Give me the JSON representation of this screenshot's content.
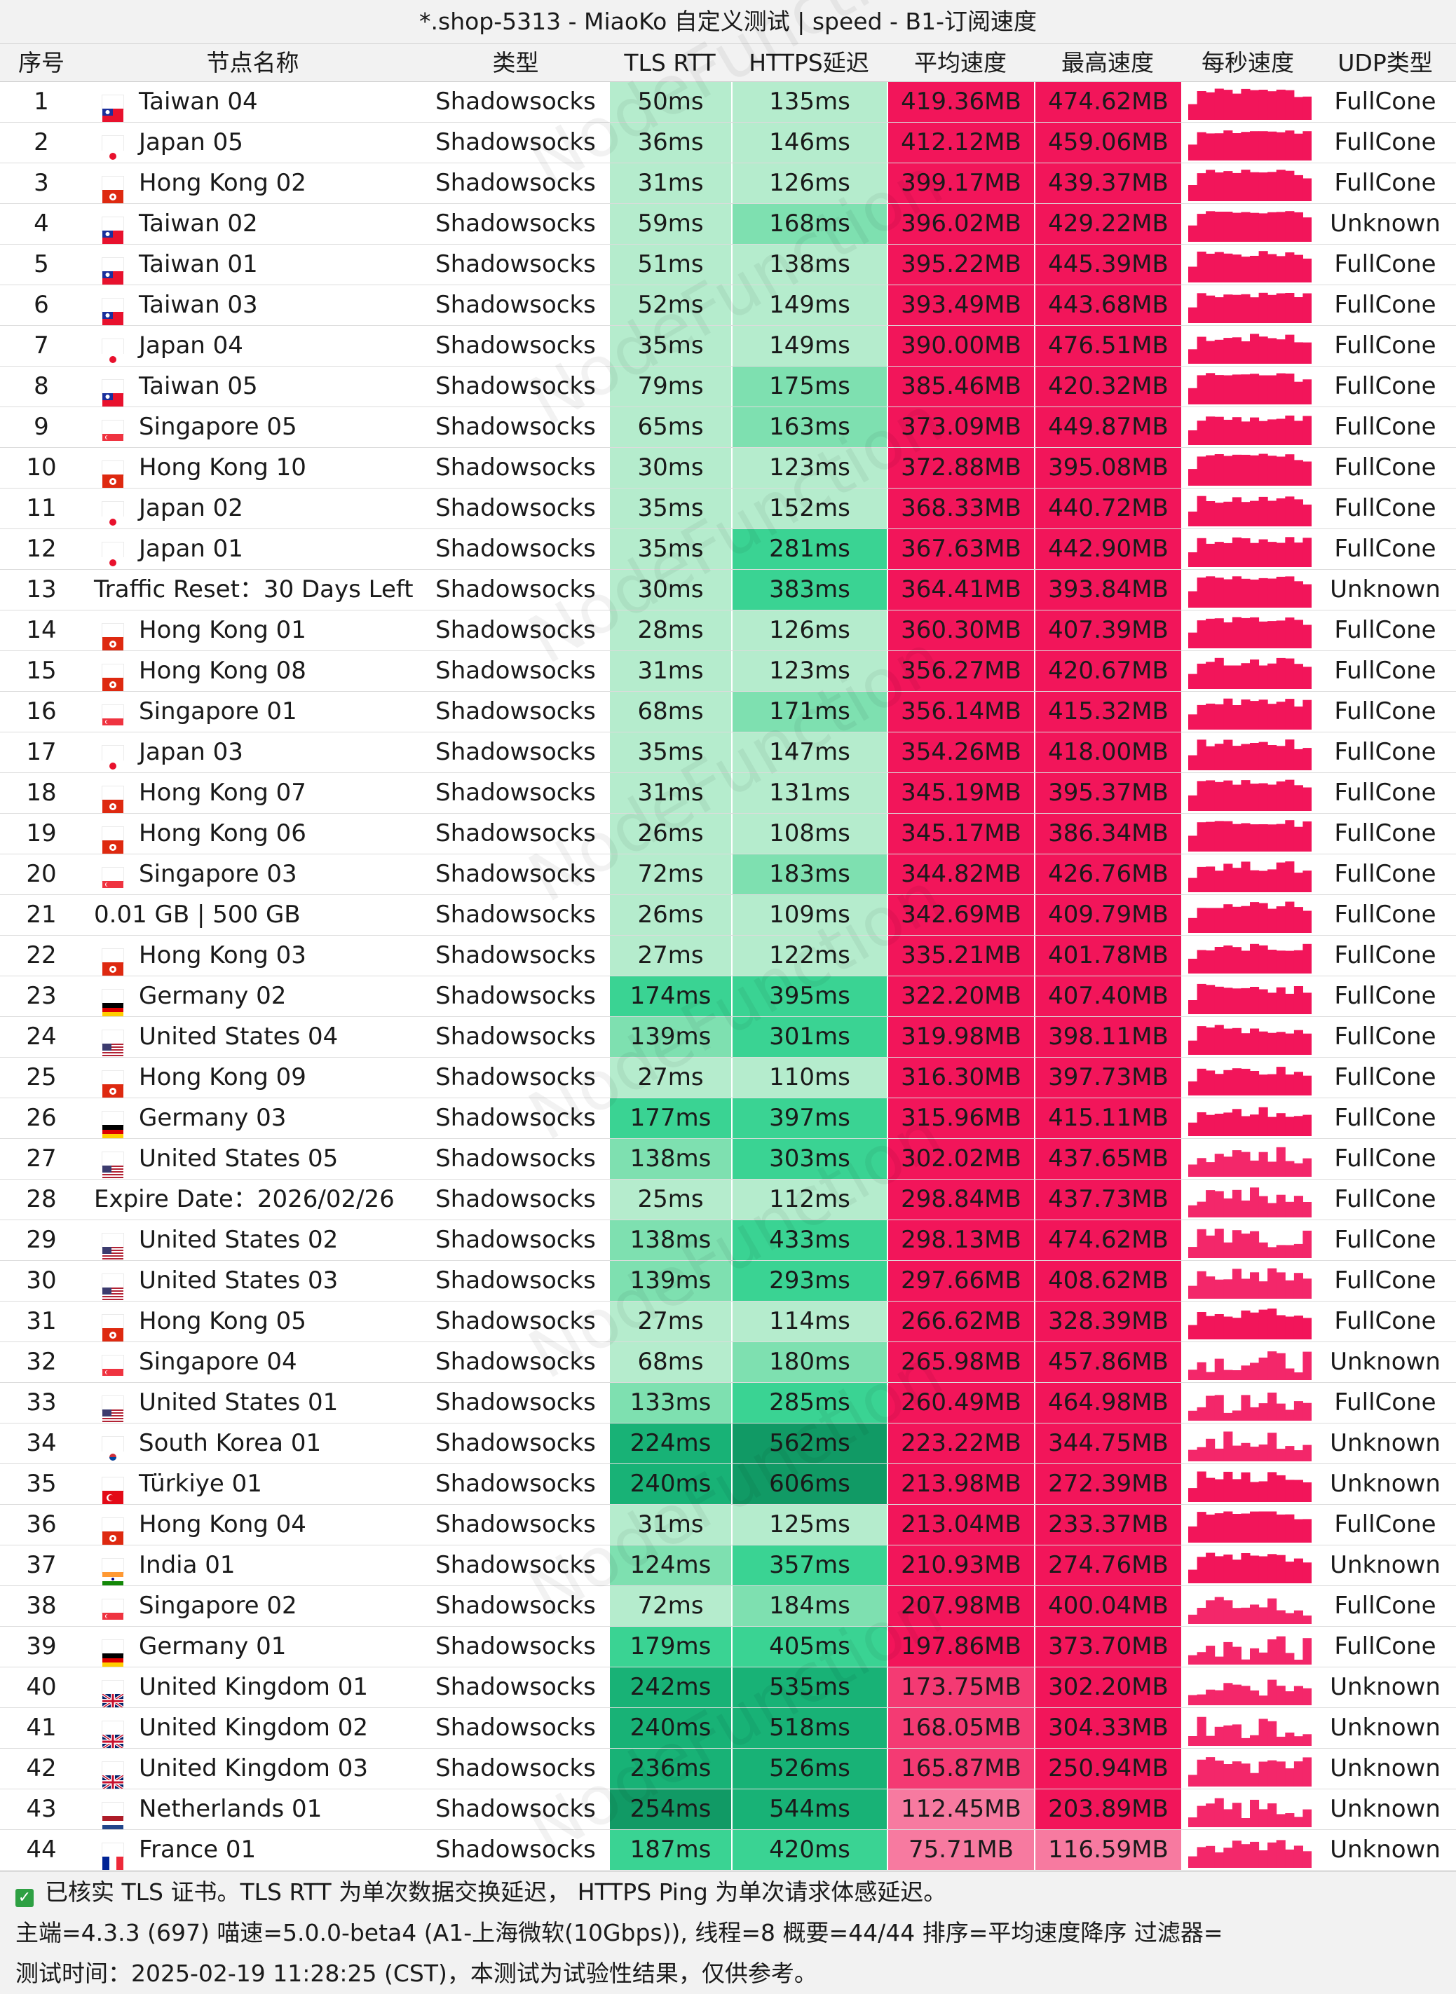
{
  "title": "*.shop-5313 - MiaoKo 自定义测试 | speed - B1-订阅速度",
  "watermark": "NodeFunction",
  "headers": {
    "no": "序号",
    "name": "节点名称",
    "type": "类型",
    "tls": "TLS RTT",
    "https": "HTTPS延迟",
    "avg": "平均速度",
    "max": "最高速度",
    "spark": "每秒速度",
    "udp": "UDP类型"
  },
  "colors": {
    "speed_high": "#f2155a",
    "speed_mid": "#f43a73",
    "speed_low": "#f77aa0",
    "latency_lightest": "#b5eccd",
    "latency_light": "#7ee0b0",
    "latency_mid": "#3ad393",
    "latency_dark": "#18b276",
    "latency_darker": "#119a65"
  },
  "rows": [
    {
      "no": "1",
      "flag": "tw",
      "name": "Taiwan 04",
      "type": "Shadowsocks",
      "tls": "50ms",
      "https": "135ms",
      "avg": "419.36MB",
      "max": "474.62MB",
      "udp": "FullCone"
    },
    {
      "no": "2",
      "flag": "jp",
      "name": "Japan 05",
      "type": "Shadowsocks",
      "tls": "36ms",
      "https": "146ms",
      "avg": "412.12MB",
      "max": "459.06MB",
      "udp": "FullCone"
    },
    {
      "no": "3",
      "flag": "hk",
      "name": "Hong Kong 02",
      "type": "Shadowsocks",
      "tls": "31ms",
      "https": "126ms",
      "avg": "399.17MB",
      "max": "439.37MB",
      "udp": "FullCone"
    },
    {
      "no": "4",
      "flag": "tw",
      "name": "Taiwan 02",
      "type": "Shadowsocks",
      "tls": "59ms",
      "https": "168ms",
      "avg": "396.02MB",
      "max": "429.22MB",
      "udp": "Unknown"
    },
    {
      "no": "5",
      "flag": "tw",
      "name": "Taiwan 01",
      "type": "Shadowsocks",
      "tls": "51ms",
      "https": "138ms",
      "avg": "395.22MB",
      "max": "445.39MB",
      "udp": "FullCone"
    },
    {
      "no": "6",
      "flag": "tw",
      "name": "Taiwan 03",
      "type": "Shadowsocks",
      "tls": "52ms",
      "https": "149ms",
      "avg": "393.49MB",
      "max": "443.68MB",
      "udp": "FullCone"
    },
    {
      "no": "7",
      "flag": "jp",
      "name": "Japan 04",
      "type": "Shadowsocks",
      "tls": "35ms",
      "https": "149ms",
      "avg": "390.00MB",
      "max": "476.51MB",
      "udp": "FullCone"
    },
    {
      "no": "8",
      "flag": "tw",
      "name": "Taiwan 05",
      "type": "Shadowsocks",
      "tls": "79ms",
      "https": "175ms",
      "avg": "385.46MB",
      "max": "420.32MB",
      "udp": "FullCone"
    },
    {
      "no": "9",
      "flag": "sg",
      "name": "Singapore 05",
      "type": "Shadowsocks",
      "tls": "65ms",
      "https": "163ms",
      "avg": "373.09MB",
      "max": "449.87MB",
      "udp": "FullCone"
    },
    {
      "no": "10",
      "flag": "hk",
      "name": "Hong Kong 10",
      "type": "Shadowsocks",
      "tls": "30ms",
      "https": "123ms",
      "avg": "372.88MB",
      "max": "395.08MB",
      "udp": "FullCone"
    },
    {
      "no": "11",
      "flag": "jp",
      "name": "Japan 02",
      "type": "Shadowsocks",
      "tls": "35ms",
      "https": "152ms",
      "avg": "368.33MB",
      "max": "440.72MB",
      "udp": "FullCone"
    },
    {
      "no": "12",
      "flag": "jp",
      "name": "Japan 01",
      "type": "Shadowsocks",
      "tls": "35ms",
      "https": "281ms",
      "avg": "367.63MB",
      "max": "442.90MB",
      "udp": "FullCone"
    },
    {
      "no": "13",
      "flag": "",
      "name": "Traffic Reset：30 Days Left",
      "type": "Shadowsocks",
      "tls": "30ms",
      "https": "383ms",
      "avg": "364.41MB",
      "max": "393.84MB",
      "udp": "Unknown"
    },
    {
      "no": "14",
      "flag": "hk",
      "name": "Hong Kong 01",
      "type": "Shadowsocks",
      "tls": "28ms",
      "https": "126ms",
      "avg": "360.30MB",
      "max": "407.39MB",
      "udp": "FullCone"
    },
    {
      "no": "15",
      "flag": "hk",
      "name": "Hong Kong 08",
      "type": "Shadowsocks",
      "tls": "31ms",
      "https": "123ms",
      "avg": "356.27MB",
      "max": "420.67MB",
      "udp": "FullCone"
    },
    {
      "no": "16",
      "flag": "sg",
      "name": "Singapore 01",
      "type": "Shadowsocks",
      "tls": "68ms",
      "https": "171ms",
      "avg": "356.14MB",
      "max": "415.32MB",
      "udp": "FullCone"
    },
    {
      "no": "17",
      "flag": "jp",
      "name": "Japan 03",
      "type": "Shadowsocks",
      "tls": "35ms",
      "https": "147ms",
      "avg": "354.26MB",
      "max": "418.00MB",
      "udp": "FullCone"
    },
    {
      "no": "18",
      "flag": "hk",
      "name": "Hong Kong 07",
      "type": "Shadowsocks",
      "tls": "31ms",
      "https": "131ms",
      "avg": "345.19MB",
      "max": "395.37MB",
      "udp": "FullCone"
    },
    {
      "no": "19",
      "flag": "hk",
      "name": "Hong Kong 06",
      "type": "Shadowsocks",
      "tls": "26ms",
      "https": "108ms",
      "avg": "345.17MB",
      "max": "386.34MB",
      "udp": "FullCone"
    },
    {
      "no": "20",
      "flag": "sg",
      "name": "Singapore 03",
      "type": "Shadowsocks",
      "tls": "72ms",
      "https": "183ms",
      "avg": "344.82MB",
      "max": "426.76MB",
      "udp": "FullCone"
    },
    {
      "no": "21",
      "flag": "",
      "name": "0.01 GB | 500 GB",
      "type": "Shadowsocks",
      "tls": "26ms",
      "https": "109ms",
      "avg": "342.69MB",
      "max": "409.79MB",
      "udp": "FullCone"
    },
    {
      "no": "22",
      "flag": "hk",
      "name": "Hong Kong 03",
      "type": "Shadowsocks",
      "tls": "27ms",
      "https": "122ms",
      "avg": "335.21MB",
      "max": "401.78MB",
      "udp": "FullCone"
    },
    {
      "no": "23",
      "flag": "de",
      "name": "Germany 02",
      "type": "Shadowsocks",
      "tls": "174ms",
      "https": "395ms",
      "avg": "322.20MB",
      "max": "407.40MB",
      "udp": "FullCone"
    },
    {
      "no": "24",
      "flag": "us",
      "name": "United States 04",
      "type": "Shadowsocks",
      "tls": "139ms",
      "https": "301ms",
      "avg": "319.98MB",
      "max": "398.11MB",
      "udp": "FullCone"
    },
    {
      "no": "25",
      "flag": "hk",
      "name": "Hong Kong 09",
      "type": "Shadowsocks",
      "tls": "27ms",
      "https": "110ms",
      "avg": "316.30MB",
      "max": "397.73MB",
      "udp": "FullCone"
    },
    {
      "no": "26",
      "flag": "de",
      "name": "Germany 03",
      "type": "Shadowsocks",
      "tls": "177ms",
      "https": "397ms",
      "avg": "315.96MB",
      "max": "415.11MB",
      "udp": "FullCone"
    },
    {
      "no": "27",
      "flag": "us",
      "name": "United States 05",
      "type": "Shadowsocks",
      "tls": "138ms",
      "https": "303ms",
      "avg": "302.02MB",
      "max": "437.65MB",
      "udp": "FullCone"
    },
    {
      "no": "28",
      "flag": "",
      "name": "Expire Date：2026/02/26",
      "type": "Shadowsocks",
      "tls": "25ms",
      "https": "112ms",
      "avg": "298.84MB",
      "max": "437.73MB",
      "udp": "FullCone"
    },
    {
      "no": "29",
      "flag": "us",
      "name": "United States 02",
      "type": "Shadowsocks",
      "tls": "138ms",
      "https": "433ms",
      "avg": "298.13MB",
      "max": "474.62MB",
      "udp": "FullCone"
    },
    {
      "no": "30",
      "flag": "us",
      "name": "United States 03",
      "type": "Shadowsocks",
      "tls": "139ms",
      "https": "293ms",
      "avg": "297.66MB",
      "max": "408.62MB",
      "udp": "FullCone"
    },
    {
      "no": "31",
      "flag": "hk",
      "name": "Hong Kong 05",
      "type": "Shadowsocks",
      "tls": "27ms",
      "https": "114ms",
      "avg": "266.62MB",
      "max": "328.39MB",
      "udp": "FullCone"
    },
    {
      "no": "32",
      "flag": "sg",
      "name": "Singapore 04",
      "type": "Shadowsocks",
      "tls": "68ms",
      "https": "180ms",
      "avg": "265.98MB",
      "max": "457.86MB",
      "udp": "Unknown"
    },
    {
      "no": "33",
      "flag": "us",
      "name": "United States 01",
      "type": "Shadowsocks",
      "tls": "133ms",
      "https": "285ms",
      "avg": "260.49MB",
      "max": "464.98MB",
      "udp": "FullCone"
    },
    {
      "no": "34",
      "flag": "kr",
      "name": "South Korea 01",
      "type": "Shadowsocks",
      "tls": "224ms",
      "https": "562ms",
      "avg": "223.22MB",
      "max": "344.75MB",
      "udp": "Unknown"
    },
    {
      "no": "35",
      "flag": "tr",
      "name": "Türkiye 01",
      "type": "Shadowsocks",
      "tls": "240ms",
      "https": "606ms",
      "avg": "213.98MB",
      "max": "272.39MB",
      "udp": "Unknown"
    },
    {
      "no": "36",
      "flag": "hk",
      "name": "Hong Kong 04",
      "type": "Shadowsocks",
      "tls": "31ms",
      "https": "125ms",
      "avg": "213.04MB",
      "max": "233.37MB",
      "udp": "FullCone"
    },
    {
      "no": "37",
      "flag": "in",
      "name": "India 01",
      "type": "Shadowsocks",
      "tls": "124ms",
      "https": "357ms",
      "avg": "210.93MB",
      "max": "274.76MB",
      "udp": "Unknown"
    },
    {
      "no": "38",
      "flag": "sg",
      "name": "Singapore 02",
      "type": "Shadowsocks",
      "tls": "72ms",
      "https": "184ms",
      "avg": "207.98MB",
      "max": "400.04MB",
      "udp": "FullCone"
    },
    {
      "no": "39",
      "flag": "de",
      "name": "Germany 01",
      "type": "Shadowsocks",
      "tls": "179ms",
      "https": "405ms",
      "avg": "197.86MB",
      "max": "373.70MB",
      "udp": "FullCone"
    },
    {
      "no": "40",
      "flag": "gb",
      "name": "United Kingdom 01",
      "type": "Shadowsocks",
      "tls": "242ms",
      "https": "535ms",
      "avg": "173.75MB",
      "max": "302.20MB",
      "udp": "Unknown"
    },
    {
      "no": "41",
      "flag": "gb",
      "name": "United Kingdom 02",
      "type": "Shadowsocks",
      "tls": "240ms",
      "https": "518ms",
      "avg": "168.05MB",
      "max": "304.33MB",
      "udp": "Unknown"
    },
    {
      "no": "42",
      "flag": "gb",
      "name": "United Kingdom 03",
      "type": "Shadowsocks",
      "tls": "236ms",
      "https": "526ms",
      "avg": "165.87MB",
      "max": "250.94MB",
      "udp": "Unknown"
    },
    {
      "no": "43",
      "flag": "nl",
      "name": "Netherlands 01",
      "type": "Shadowsocks",
      "tls": "254ms",
      "https": "544ms",
      "avg": "112.45MB",
      "max": "203.89MB",
      "udp": "Unknown"
    },
    {
      "no": "44",
      "flag": "fr",
      "name": "France 01",
      "type": "Shadowsocks",
      "tls": "187ms",
      "https": "420ms",
      "avg": "75.71MB",
      "max": "116.59MB",
      "udp": "Unknown"
    }
  ],
  "footer": {
    "line1": "已核实 TLS 证书。TLS RTT 为单次数据交换延迟， HTTPS Ping 为单次请求体感延迟。",
    "line2": "主端=4.3.3 (697) 喵速=5.0.0-beta4 (A1-上海微软(10Gbps)), 线程=8 概要=44/44 排序=平均速度降序 过滤器=",
    "line3": "测试时间：2025-02-19 11:28:25 (CST)，本测试为试验性结果，仅供参考。"
  }
}
